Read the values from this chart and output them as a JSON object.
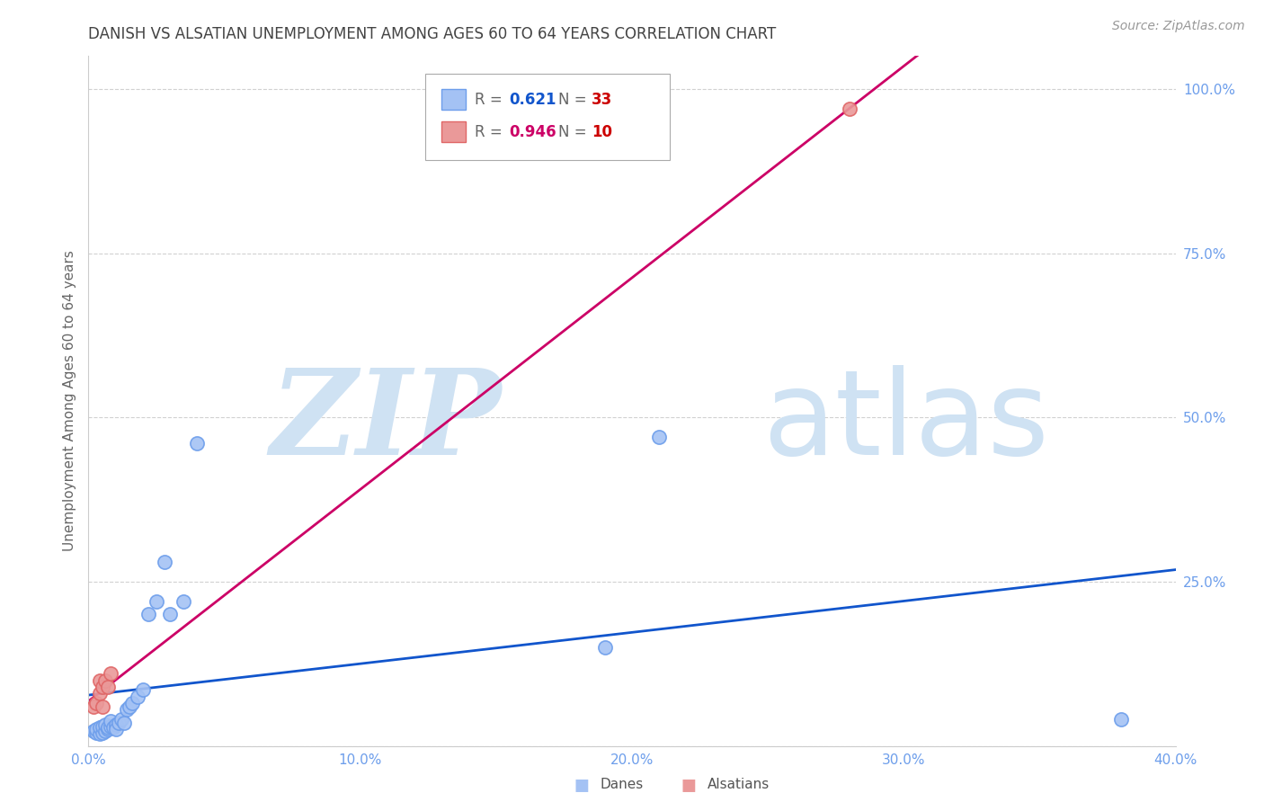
{
  "title": "DANISH VS ALSATIAN UNEMPLOYMENT AMONG AGES 60 TO 64 YEARS CORRELATION CHART",
  "source_text": "Source: ZipAtlas.com",
  "ylabel": "Unemployment Among Ages 60 to 64 years",
  "watermark_zip": "ZIP",
  "watermark_atlas": "atlas",
  "xlim": [
    0.0,
    0.4
  ],
  "ylim": [
    0.0,
    1.05
  ],
  "xticks": [
    0.0,
    0.1,
    0.2,
    0.3,
    0.4
  ],
  "yticks": [
    0.0,
    0.25,
    0.5,
    0.75,
    1.0
  ],
  "xticklabels": [
    "0.0%",
    "10.0%",
    "20.0%",
    "30.0%",
    "40.0%"
  ],
  "yticklabels": [
    "",
    "25.0%",
    "50.0%",
    "75.0%",
    "100.0%"
  ],
  "danes_x": [
    0.002,
    0.003,
    0.003,
    0.004,
    0.004,
    0.005,
    0.005,
    0.006,
    0.006,
    0.007,
    0.007,
    0.008,
    0.008,
    0.009,
    0.01,
    0.01,
    0.011,
    0.012,
    0.013,
    0.014,
    0.015,
    0.016,
    0.018,
    0.02,
    0.022,
    0.025,
    0.028,
    0.03,
    0.035,
    0.04,
    0.19,
    0.21,
    0.38
  ],
  "danes_y": [
    0.022,
    0.02,
    0.025,
    0.018,
    0.028,
    0.02,
    0.03,
    0.022,
    0.032,
    0.025,
    0.028,
    0.03,
    0.038,
    0.028,
    0.032,
    0.025,
    0.035,
    0.04,
    0.035,
    0.055,
    0.06,
    0.065,
    0.075,
    0.085,
    0.2,
    0.22,
    0.28,
    0.2,
    0.22,
    0.46,
    0.15,
    0.47,
    0.04
  ],
  "alsatians_x": [
    0.002,
    0.003,
    0.004,
    0.004,
    0.005,
    0.005,
    0.006,
    0.007,
    0.008,
    0.28
  ],
  "alsatians_y": [
    0.06,
    0.065,
    0.08,
    0.1,
    0.06,
    0.09,
    0.1,
    0.09,
    0.11,
    0.97
  ],
  "danes_color": "#a4c2f4",
  "danes_edge_color": "#6d9eeb",
  "alsatians_color": "#ea9999",
  "alsatians_edge_color": "#e06666",
  "danes_line_color": "#1155cc",
  "alsatians_line_color": "#cc0066",
  "danes_R": 0.621,
  "danes_N": 33,
  "alsatians_R": 0.946,
  "alsatians_N": 10,
  "background_color": "#ffffff",
  "grid_color": "#cccccc",
  "title_color": "#434343",
  "axis_label_color": "#666666",
  "tick_color": "#6d9eeb",
  "source_color": "#999999",
  "watermark_color": "#cfe2f3",
  "legend_R_color_danes": "#1155cc",
  "legend_N_color_danes": "#cc0000",
  "legend_R_color_alsatians": "#cc0066",
  "legend_N_color_alsatians": "#cc0000"
}
